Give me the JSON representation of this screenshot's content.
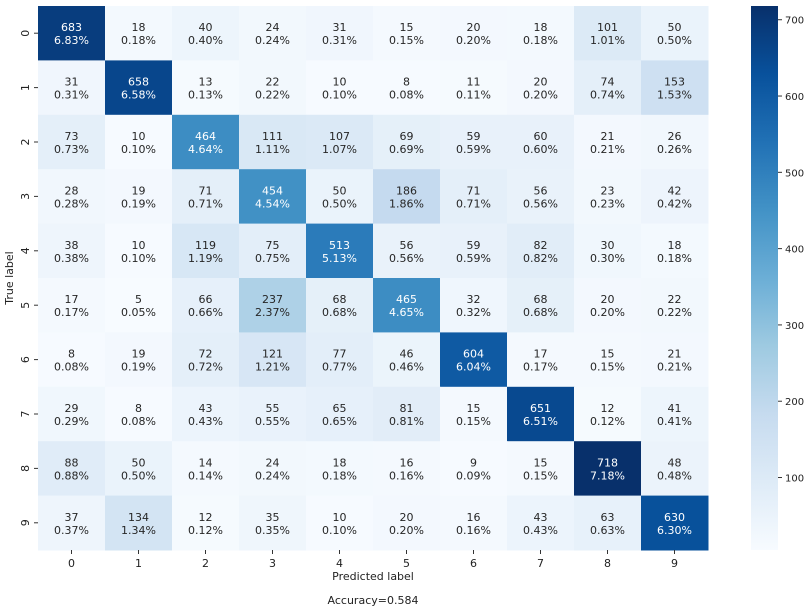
{
  "chart_data": {
    "type": "heatmap",
    "xlabel": "Predicted label",
    "ylabel": "True label",
    "caption": "Accuracy=0.584",
    "x_categories": [
      "0",
      "1",
      "2",
      "3",
      "4",
      "5",
      "6",
      "7",
      "8",
      "9"
    ],
    "y_categories": [
      "0",
      "1",
      "2",
      "3",
      "4",
      "5",
      "6",
      "7",
      "8",
      "9"
    ],
    "values": [
      [
        683,
        18,
        40,
        24,
        31,
        15,
        20,
        18,
        101,
        50
      ],
      [
        31,
        658,
        13,
        22,
        10,
        8,
        11,
        20,
        74,
        153
      ],
      [
        73,
        10,
        464,
        111,
        107,
        69,
        59,
        60,
        21,
        26
      ],
      [
        28,
        19,
        71,
        454,
        50,
        186,
        71,
        56,
        23,
        42
      ],
      [
        38,
        10,
        119,
        75,
        513,
        56,
        59,
        82,
        30,
        18
      ],
      [
        17,
        5,
        66,
        237,
        68,
        465,
        32,
        68,
        20,
        22
      ],
      [
        8,
        19,
        72,
        121,
        77,
        46,
        604,
        17,
        15,
        21
      ],
      [
        29,
        8,
        43,
        55,
        65,
        81,
        15,
        651,
        12,
        41
      ],
      [
        88,
        50,
        14,
        24,
        18,
        16,
        9,
        15,
        718,
        48
      ],
      [
        37,
        134,
        12,
        35,
        10,
        20,
        16,
        43,
        63,
        630
      ]
    ],
    "percents": [
      [
        "6.83%",
        "0.18%",
        "0.40%",
        "0.24%",
        "0.31%",
        "0.15%",
        "0.20%",
        "0.18%",
        "1.01%",
        "0.50%"
      ],
      [
        "0.31%",
        "6.58%",
        "0.13%",
        "0.22%",
        "0.10%",
        "0.08%",
        "0.11%",
        "0.20%",
        "0.74%",
        "1.53%"
      ],
      [
        "0.73%",
        "0.10%",
        "4.64%",
        "1.11%",
        "1.07%",
        "0.69%",
        "0.59%",
        "0.60%",
        "0.21%",
        "0.26%"
      ],
      [
        "0.28%",
        "0.19%",
        "0.71%",
        "4.54%",
        "0.50%",
        "1.86%",
        "0.71%",
        "0.56%",
        "0.23%",
        "0.42%"
      ],
      [
        "0.38%",
        "0.10%",
        "1.19%",
        "0.75%",
        "5.13%",
        "0.56%",
        "0.59%",
        "0.82%",
        "0.30%",
        "0.18%"
      ],
      [
        "0.17%",
        "0.05%",
        "0.66%",
        "2.37%",
        "0.68%",
        "4.65%",
        "0.32%",
        "0.68%",
        "0.20%",
        "0.22%"
      ],
      [
        "0.08%",
        "0.19%",
        "0.72%",
        "1.21%",
        "0.77%",
        "0.46%",
        "6.04%",
        "0.17%",
        "0.15%",
        "0.21%"
      ],
      [
        "0.29%",
        "0.08%",
        "0.43%",
        "0.55%",
        "0.65%",
        "0.81%",
        "0.15%",
        "6.51%",
        "0.12%",
        "0.41%"
      ],
      [
        "0.88%",
        "0.50%",
        "0.14%",
        "0.24%",
        "0.18%",
        "0.16%",
        "0.09%",
        "0.15%",
        "7.18%",
        "0.48%"
      ],
      [
        "0.37%",
        "1.34%",
        "0.12%",
        "0.35%",
        "0.10%",
        "0.20%",
        "0.16%",
        "0.43%",
        "0.63%",
        "6.30%"
      ]
    ],
    "colorbar": {
      "ticks": [
        100,
        200,
        300,
        400,
        500,
        600,
        700
      ],
      "vmin": 5,
      "vmax": 718,
      "colormap": "Blues"
    },
    "grid": false,
    "legend": "colorbar-right"
  }
}
